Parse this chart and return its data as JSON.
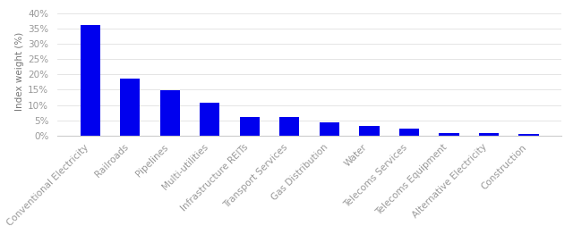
{
  "categories": [
    "Conventional Electricity",
    "Railroads",
    "Pipelines",
    "Multi-utilities",
    "Infrastructure REITs",
    "Transport Services",
    "Gas Distribution",
    "Water",
    "Telecoms Services",
    "Telecoms Equipment",
    "Alternative Electricity",
    "Construction"
  ],
  "values": [
    36.0,
    18.5,
    14.8,
    10.8,
    6.2,
    6.0,
    4.3,
    3.2,
    2.2,
    0.8,
    0.8,
    0.7
  ],
  "bar_color": "#0000EE",
  "ylabel": "Index weight (%)",
  "yticks": [
    0,
    5,
    10,
    15,
    20,
    25,
    30,
    35,
    40
  ],
  "ylim": [
    0,
    42
  ],
  "background_color": "#ffffff",
  "tick_label_color": "#999999",
  "ylabel_color": "#777777",
  "label_fontsize": 7.5,
  "ylabel_fontsize": 7.5,
  "bar_width": 0.5
}
